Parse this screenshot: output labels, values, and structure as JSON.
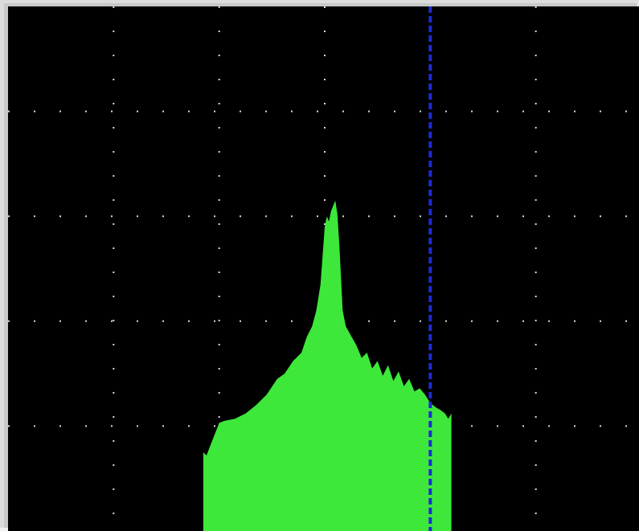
{
  "chart_data": {
    "type": "area",
    "title": "",
    "xlabel": "",
    "ylabel": "",
    "xlim": [
      0,
      6
    ],
    "ylim": [
      0,
      5
    ],
    "grid": true,
    "grid_style": "dotted",
    "colors": {
      "background": "#000000",
      "grid": "#ffffff",
      "fill": "#3de83a",
      "marker": "#1e2bd6"
    },
    "marker": {
      "x": 4.0,
      "style": "dashed"
    },
    "series": [
      {
        "x": [
          1.85,
          1.88,
          1.93,
          2.0,
          2.05,
          2.15,
          2.25,
          2.35,
          2.45,
          2.55,
          2.62,
          2.7,
          2.78,
          2.83,
          2.88,
          2.92,
          2.96,
          3.0,
          3.02,
          3.04,
          3.06,
          3.08,
          3.1,
          3.12,
          3.14,
          3.17,
          3.2,
          3.25,
          3.3,
          3.35,
          3.4,
          3.45,
          3.5,
          3.55,
          3.6,
          3.65,
          3.7,
          3.75,
          3.8,
          3.85,
          3.9,
          3.95,
          4.0,
          4.05,
          4.1,
          4.14,
          4.17,
          4.2
        ],
        "y": [
          0.75,
          0.72,
          0.85,
          1.03,
          1.05,
          1.07,
          1.12,
          1.2,
          1.3,
          1.45,
          1.5,
          1.62,
          1.7,
          1.85,
          1.95,
          2.1,
          2.35,
          2.9,
          3.0,
          2.95,
          3.05,
          3.1,
          3.15,
          3.02,
          2.7,
          2.1,
          1.95,
          1.86,
          1.77,
          1.65,
          1.7,
          1.55,
          1.62,
          1.48,
          1.58,
          1.43,
          1.52,
          1.38,
          1.45,
          1.33,
          1.36,
          1.3,
          1.22,
          1.18,
          1.15,
          1.12,
          1.07,
          1.12
        ]
      }
    ]
  }
}
